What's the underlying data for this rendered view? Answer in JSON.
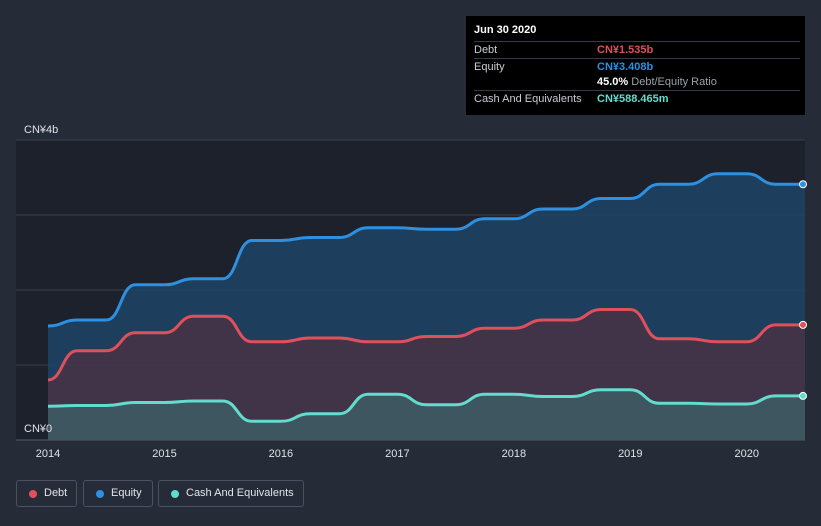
{
  "tooltip": {
    "date": "Jun 30 2020",
    "debt_label": "Debt",
    "debt_value": "CN¥1.535b",
    "equity_label": "Equity",
    "equity_value": "CN¥3.408b",
    "ratio_value": "45.0%",
    "ratio_label": "Debt/Equity Ratio",
    "cash_label": "Cash And Equivalents",
    "cash_value": "CN¥588.465m"
  },
  "legend": {
    "debt": "Debt",
    "equity": "Equity",
    "cash": "Cash And Equivalents"
  },
  "colors": {
    "background": "#252b37",
    "debt": "#e0505c",
    "equity": "#2f8fe0",
    "cash": "#62dccf"
  },
  "chart_data": {
    "type": "area",
    "ylabel_top": "CN¥4b",
    "ylabel_bottom": "CN¥0",
    "ylim": [
      0,
      4
    ],
    "xlim": [
      2014,
      2020.5
    ],
    "x_ticks": [
      "2014",
      "2015",
      "2016",
      "2017",
      "2018",
      "2019",
      "2020"
    ],
    "grid": true,
    "legend_position": "bottom-left",
    "series": [
      {
        "name": "Equity",
        "x": [
          2014.0,
          2014.25,
          2014.5,
          2014.75,
          2015.0,
          2015.25,
          2015.5,
          2015.75,
          2016.0,
          2016.25,
          2016.5,
          2016.75,
          2017.0,
          2017.25,
          2017.5,
          2017.75,
          2018.0,
          2018.25,
          2018.5,
          2018.75,
          2019.0,
          2019.25,
          2019.5,
          2019.75,
          2020.0,
          2020.25,
          2020.5
        ],
        "values": [
          1.52,
          1.6,
          1.6,
          2.07,
          2.07,
          2.15,
          2.15,
          2.66,
          2.66,
          2.7,
          2.7,
          2.83,
          2.83,
          2.81,
          2.81,
          2.95,
          2.95,
          3.08,
          3.08,
          3.22,
          3.22,
          3.41,
          3.41,
          3.55,
          3.55,
          3.41,
          3.41
        ]
      },
      {
        "name": "Debt",
        "x": [
          2014.0,
          2014.25,
          2014.5,
          2014.75,
          2015.0,
          2015.25,
          2015.5,
          2015.75,
          2016.0,
          2016.25,
          2016.5,
          2016.75,
          2017.0,
          2017.25,
          2017.5,
          2017.75,
          2018.0,
          2018.25,
          2018.5,
          2018.75,
          2019.0,
          2019.25,
          2019.5,
          2019.75,
          2020.0,
          2020.25,
          2020.5
        ],
        "values": [
          0.8,
          1.19,
          1.19,
          1.43,
          1.43,
          1.65,
          1.65,
          1.31,
          1.31,
          1.36,
          1.36,
          1.31,
          1.31,
          1.38,
          1.38,
          1.49,
          1.49,
          1.6,
          1.6,
          1.74,
          1.74,
          1.35,
          1.35,
          1.31,
          1.31,
          1.535,
          1.535
        ]
      },
      {
        "name": "Cash And Equivalents",
        "x": [
          2014.0,
          2014.25,
          2014.5,
          2014.75,
          2015.0,
          2015.25,
          2015.5,
          2015.75,
          2016.0,
          2016.25,
          2016.5,
          2016.75,
          2017.0,
          2017.25,
          2017.5,
          2017.75,
          2018.0,
          2018.25,
          2018.5,
          2018.75,
          2019.0,
          2019.25,
          2019.5,
          2019.75,
          2020.0,
          2020.25,
          2020.5
        ],
        "values": [
          0.45,
          0.46,
          0.46,
          0.5,
          0.5,
          0.52,
          0.52,
          0.25,
          0.25,
          0.35,
          0.35,
          0.61,
          0.61,
          0.47,
          0.47,
          0.61,
          0.61,
          0.58,
          0.58,
          0.67,
          0.67,
          0.49,
          0.49,
          0.48,
          0.48,
          0.588,
          0.588
        ]
      }
    ]
  }
}
